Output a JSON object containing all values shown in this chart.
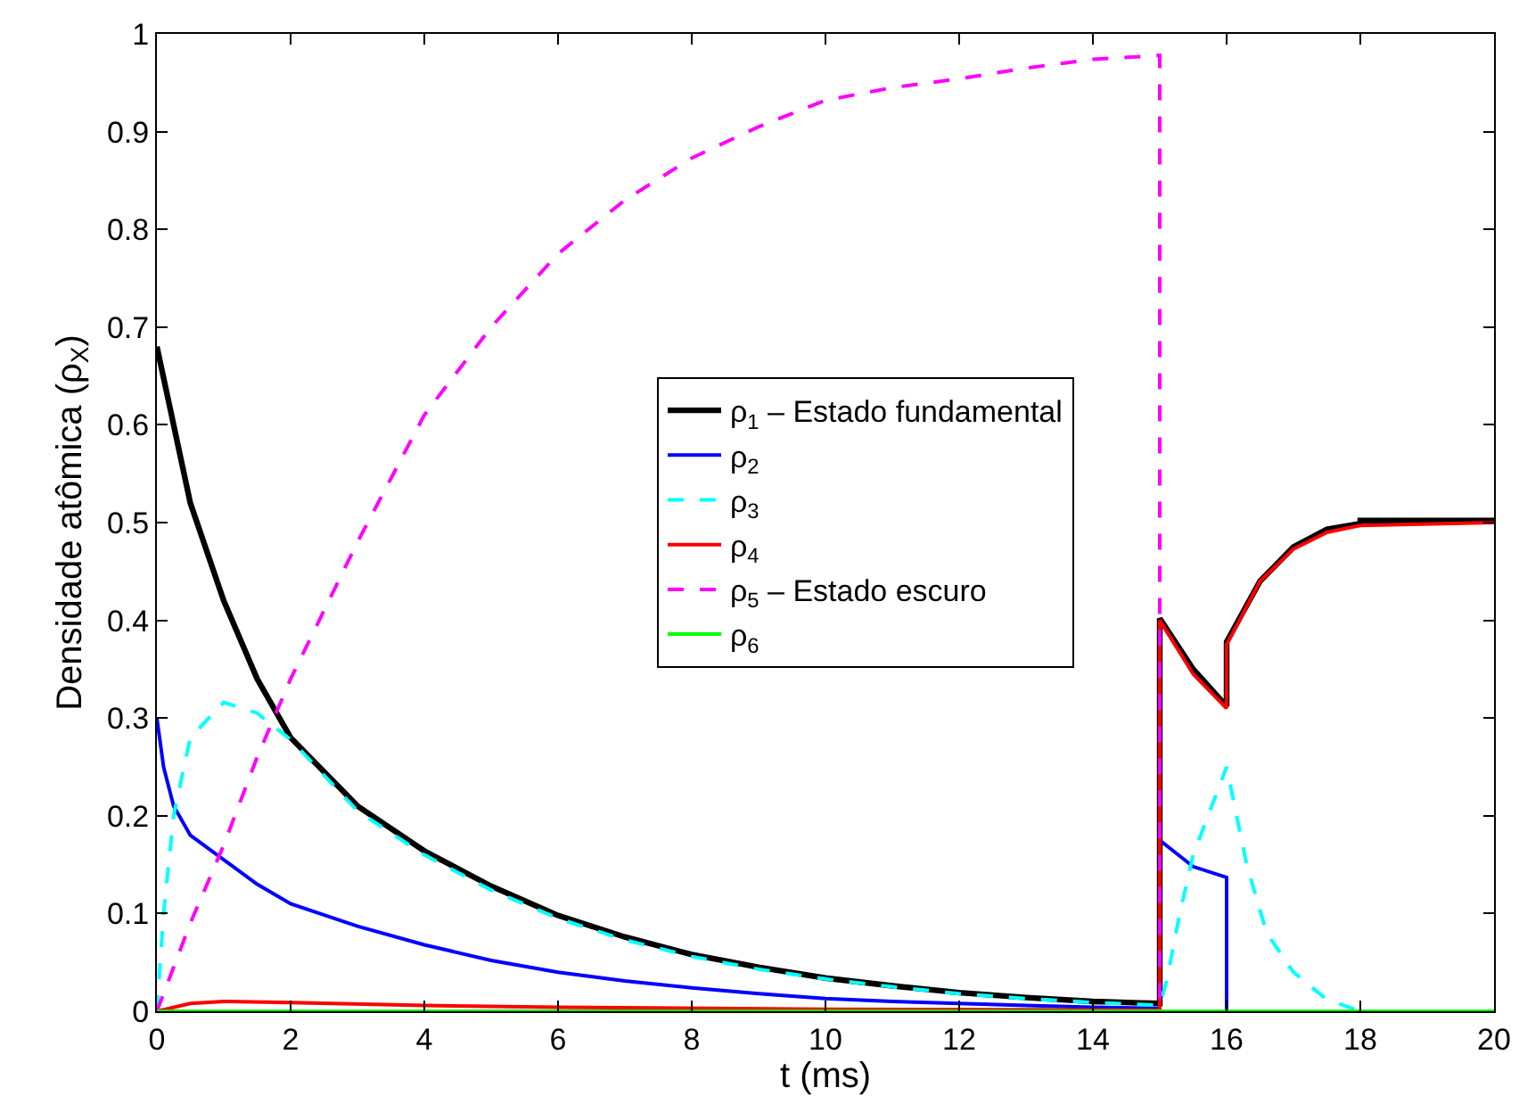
{
  "chart_data": {
    "type": "line",
    "xlabel": "t (ms)",
    "ylabel": "Densidade atômica (ρ$_{X}$)",
    "xlim": [
      0,
      20
    ],
    "xticks": [
      0,
      2,
      4,
      6,
      8,
      10,
      12,
      14,
      16,
      18,
      20
    ],
    "ylim": [
      0,
      1
    ],
    "yticks": [
      0,
      0.1,
      0.2,
      0.3,
      0.4,
      0.5,
      0.6,
      0.7,
      0.8,
      0.9,
      1
    ],
    "grid": false,
    "legend": "center",
    "marker": "none",
    "series": [
      {
        "name": "ρ$_{1}$ – Estado fundamental",
        "color": "#000000",
        "line_style": "solid",
        "x": [
          0,
          0.25,
          0.5,
          1,
          1.5,
          2,
          3,
          4,
          5,
          6,
          7,
          8,
          9,
          10,
          11,
          12,
          13,
          14,
          15,
          15,
          15.5,
          16,
          16,
          16.5,
          17,
          17.5,
          18,
          18,
          20
        ],
        "values": [
          0.68,
          0.6,
          0.52,
          0.42,
          0.34,
          0.28,
          0.21,
          0.164,
          0.128,
          0.098,
          0.076,
          0.058,
          0.045,
          0.034,
          0.026,
          0.019,
          0.014,
          0.01,
          0.008,
          0.402,
          0.35,
          0.312,
          0.378,
          0.44,
          0.475,
          0.493,
          0.499,
          0.502,
          0.502
        ]
      },
      {
        "name": "ρ$_{2}$",
        "color": "#0000ff",
        "line_style": "solid",
        "x": [
          0,
          0.1,
          0.25,
          0.5,
          1,
          1.5,
          2,
          3,
          4,
          5,
          6,
          7,
          8,
          9,
          10,
          11,
          12,
          13,
          14,
          15,
          15,
          15.5,
          16,
          16,
          20
        ],
        "values": [
          0.3,
          0.25,
          0.21,
          0.18,
          0.155,
          0.13,
          0.11,
          0.087,
          0.068,
          0.052,
          0.04,
          0.031,
          0.024,
          0.018,
          0.013,
          0.01,
          0.008,
          0.006,
          0.004,
          0.003,
          0.175,
          0.148,
          0.137,
          0,
          0
        ]
      },
      {
        "name": "ρ$_{3}$",
        "color": "#00ffff",
        "line_style": "dashed",
        "x": [
          0,
          0.1,
          0.25,
          0.5,
          1,
          1.5,
          2,
          3,
          4,
          5,
          6,
          7,
          8,
          9,
          10,
          11,
          12,
          13,
          14,
          15,
          15.1,
          15.3,
          15.5,
          16,
          16.3,
          16.6,
          17,
          17.5,
          18,
          20
        ],
        "values": [
          0,
          0.1,
          0.2,
          0.28,
          0.316,
          0.305,
          0.278,
          0.205,
          0.16,
          0.124,
          0.095,
          0.073,
          0.056,
          0.043,
          0.033,
          0.025,
          0.018,
          0.013,
          0.009,
          0.006,
          0.03,
          0.1,
          0.16,
          0.25,
          0.15,
          0.08,
          0.04,
          0.012,
          0,
          0
        ]
      },
      {
        "name": "ρ$_{4}$",
        "color": "#ff0000",
        "line_style": "solid",
        "x": [
          0,
          0.5,
          1,
          2,
          4,
          6,
          10,
          15,
          15,
          15.5,
          16,
          16,
          16.5,
          17,
          17.5,
          18,
          20
        ],
        "values": [
          0,
          0.008,
          0.01,
          0.009,
          0.006,
          0.004,
          0.002,
          0.001,
          0.4,
          0.345,
          0.31,
          0.375,
          0.44,
          0.473,
          0.49,
          0.497,
          0.5
        ]
      },
      {
        "name": "ρ$_{5}$ – Estado escuro",
        "color": "#ff00ff",
        "line_style": "dashed",
        "x": [
          0,
          0.5,
          1,
          1.5,
          2,
          3,
          4,
          5,
          6,
          7,
          8,
          9,
          10,
          11,
          12,
          13,
          14,
          15,
          15,
          20
        ],
        "values": [
          0,
          0.09,
          0.17,
          0.26,
          0.34,
          0.48,
          0.61,
          0.7,
          0.775,
          0.83,
          0.873,
          0.905,
          0.932,
          0.945,
          0.954,
          0.965,
          0.974,
          0.978,
          0,
          0
        ]
      },
      {
        "name": "ρ$_{6}$",
        "color": "#00ff00",
        "line_style": "solid",
        "x": [
          0,
          20
        ],
        "values": [
          0,
          0
        ]
      }
    ]
  }
}
